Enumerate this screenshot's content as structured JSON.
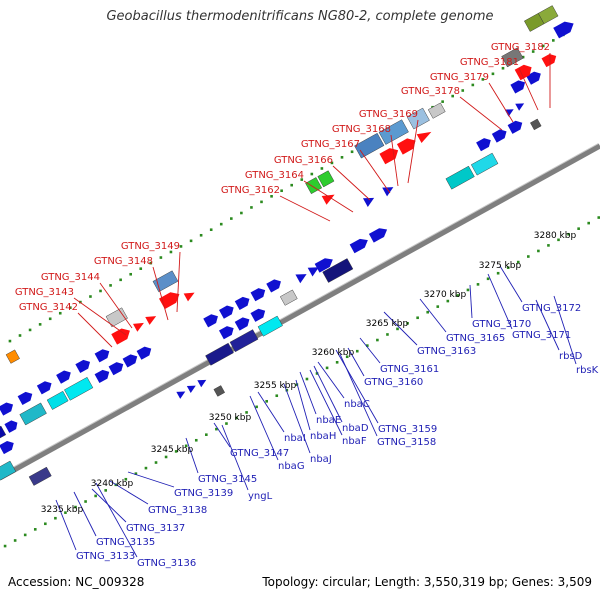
{
  "title": "Geobacillus thermodenitrificans NG80-2, complete genome",
  "footer": {
    "accession": "Accession: NC_009328",
    "summary": "Topology: circular; Length: 3,550,319 bp; Genes: 3,509"
  },
  "colors": {
    "backbone": "#7f7f7f",
    "ticks": "#2b8a1f",
    "upper_label": "#d11a1a",
    "lower_label": "#1f1fb4",
    "kbp_label": "#000000"
  },
  "kbp_labels": [
    "3235 kbp",
    "3240 kbp",
    "3245 kbp",
    "3250 kbp",
    "3255 kbp",
    "3260 kbp",
    "3265 kbp",
    "3270 kbp",
    "3275 kbp",
    "3280 kbp"
  ],
  "upper_genes": [
    "GTNG_3142",
    "GTNG_3143",
    "GTNG_3144",
    "GTNG_3148",
    "GTNG_3149",
    "GTNG_3162",
    "GTNG_3164",
    "GTNG_3166",
    "GTNG_3167",
    "GTNG_3168",
    "GTNG_3169",
    "GTNG_3178",
    "GTNG_3179",
    "GTNG_3181",
    "GTNG_3182"
  ],
  "lower_genes": [
    "GTNG_3133",
    "GTNG_3135",
    "GTNG_3136",
    "GTNG_3137",
    "GTNG_3138",
    "GTNG_3139",
    "GTNG_3145",
    "yngL",
    "GTNG_3147",
    "nbaI",
    "nbaG",
    "nbaH",
    "nbaJ",
    "nbaE",
    "nbaF",
    "nbaD",
    "nbaC",
    "GTNG_3158",
    "GTNG_3159",
    "GTNG_3160",
    "GTNG_3161",
    "GTNG_3163",
    "GTNG_3165",
    "GTNG_3170",
    "GTNG_3171",
    "GTNG_3172",
    "rbsD",
    "rbsK"
  ]
}
